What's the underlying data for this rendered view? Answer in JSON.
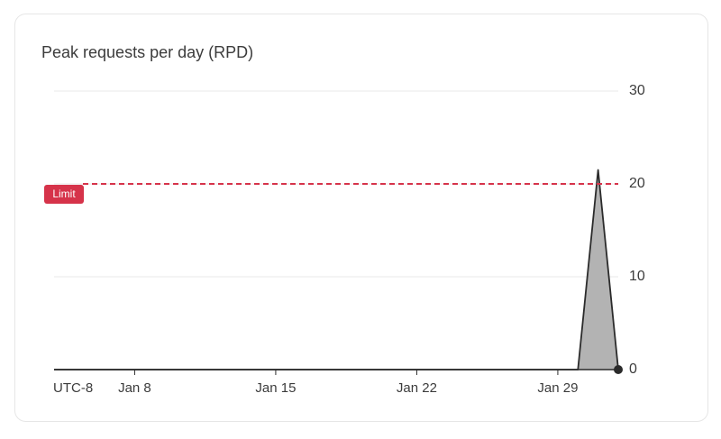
{
  "chart_data": {
    "type": "area",
    "title": "Peak requests per day (RPD)",
    "timezone_label": "UTC-8",
    "categories": [
      null,
      null,
      null,
      null,
      "Jan 8",
      null,
      null,
      null,
      null,
      null,
      null,
      "Jan 15",
      null,
      null,
      null,
      null,
      null,
      null,
      "Jan 22",
      null,
      null,
      null,
      null,
      null,
      null,
      "Jan 29",
      null,
      null,
      null
    ],
    "values": [
      0,
      0,
      0,
      0,
      0,
      0,
      0,
      0,
      0,
      0,
      0,
      0,
      0,
      0,
      0,
      0,
      0,
      0,
      0,
      0,
      0,
      0,
      0,
      0,
      0,
      0,
      0,
      21.5,
      0
    ],
    "color": "#2b2b2b",
    "fill_color": "#b3b3b3",
    "ylim": [
      0,
      30
    ],
    "yticks": [
      0,
      10,
      20,
      30
    ],
    "grid": true,
    "limit": {
      "value": 20,
      "label": "Limit",
      "color": "#d6334a"
    }
  }
}
